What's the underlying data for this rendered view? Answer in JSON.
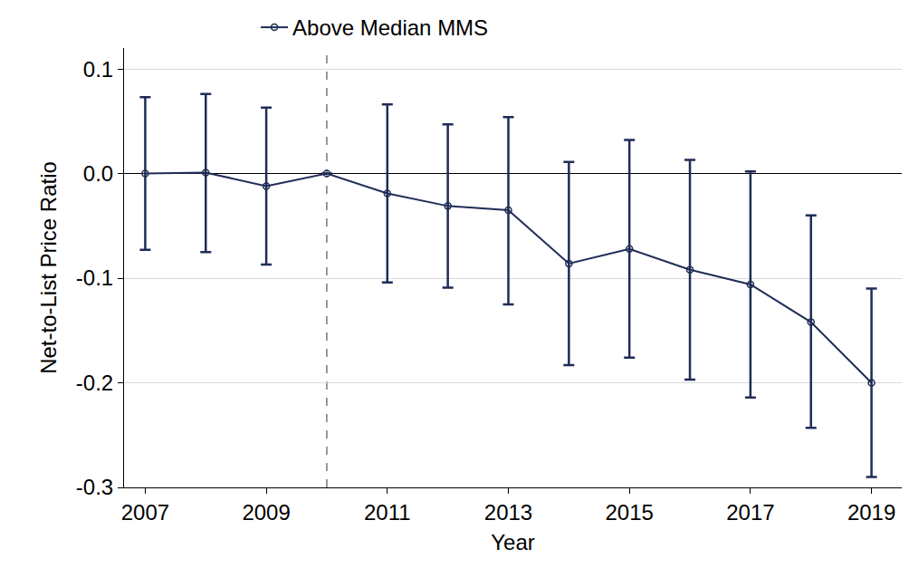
{
  "chart_data": {
    "type": "line",
    "x_label": "Year",
    "y_label": "Net-to-List Price Ratio",
    "x": [
      2007,
      2008,
      2009,
      2010,
      2011,
      2012,
      2013,
      2014,
      2015,
      2016,
      2017,
      2018,
      2019
    ],
    "series": [
      {
        "name": "Above Median MMS",
        "color": "#1f2d56",
        "marker": "open circle",
        "line_style": "solid",
        "values": [
          0.0,
          0.001,
          -0.012,
          0.0,
          -0.019,
          -0.031,
          -0.035,
          -0.086,
          -0.072,
          -0.092,
          -0.106,
          -0.142,
          -0.2
        ],
        "error_plus": [
          0.073,
          0.075,
          0.075,
          null,
          0.085,
          0.078,
          0.089,
          0.097,
          0.104,
          0.105,
          0.108,
          0.102,
          0.09
        ],
        "error_minus": [
          0.073,
          0.076,
          0.075,
          null,
          0.085,
          0.078,
          0.09,
          0.097,
          0.104,
          0.105,
          0.108,
          0.101,
          0.09
        ]
      }
    ],
    "event_x": 2010,
    "xlim": [
      2006.65,
      2019.5
    ],
    "xticks": [
      2007,
      2009,
      2011,
      2013,
      2015,
      2017,
      2019
    ],
    "ylim": [
      -0.3,
      0.12
    ],
    "yticks": [
      {
        "value": -0.3,
        "label": "-0.3"
      },
      {
        "value": -0.2,
        "label": "-0.2"
      },
      {
        "value": -0.1,
        "label": "-0.1"
      },
      {
        "value": 0,
        "label": "0.0"
      },
      {
        "value": 0.1,
        "label": "0.1"
      }
    ],
    "grid": true,
    "legend": "top"
  }
}
